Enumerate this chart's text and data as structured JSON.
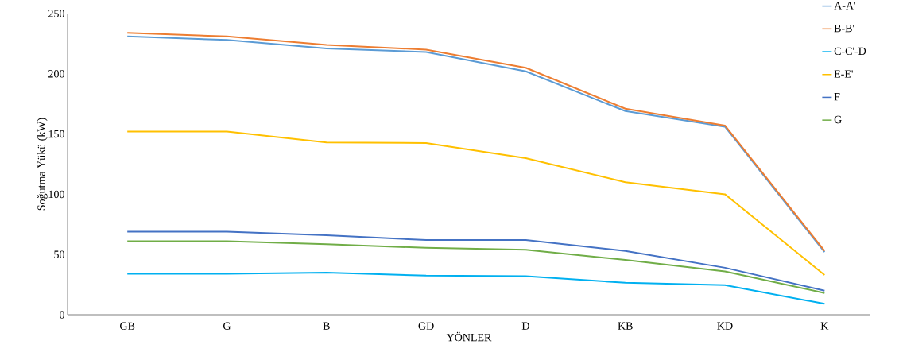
{
  "chart_data": {
    "type": "line",
    "xlabel": "YÖNLER",
    "ylabel": "Soğutma Yükü (kW)",
    "categories": [
      "GB",
      "G",
      "B",
      "GD",
      "D",
      "KB",
      "KD",
      "K"
    ],
    "ylim": [
      0,
      250
    ],
    "yticks": [
      0,
      50,
      100,
      150,
      200,
      250
    ],
    "grid": false,
    "legend": "top right",
    "marker": "none",
    "line_style": "solid",
    "series": [
      {
        "name": "A-A'",
        "color": "#5b9bd5",
        "values": [
          231,
          228,
          221,
          218,
          202,
          169,
          156,
          52
        ]
      },
      {
        "name": "B-B'",
        "color": "#ed7d31",
        "values": [
          234,
          231,
          224,
          220,
          205,
          171,
          157,
          53
        ]
      },
      {
        "name": "C-C'-D",
        "color": "#00b0f0",
        "values": [
          34,
          34,
          35,
          32.5,
          32,
          26.5,
          24.5,
          9
        ]
      },
      {
        "name": "E-E'",
        "color": "#ffc000",
        "values": [
          152,
          152,
          143,
          142.5,
          130,
          110,
          100,
          33
        ]
      },
      {
        "name": "F",
        "color": "#4472c4",
        "values": [
          69,
          69,
          66,
          62,
          62,
          53,
          39,
          20
        ]
      },
      {
        "name": "G",
        "color": "#70ad47",
        "values": [
          61,
          61,
          58.5,
          55.5,
          54,
          45.5,
          36,
          18
        ]
      }
    ]
  }
}
